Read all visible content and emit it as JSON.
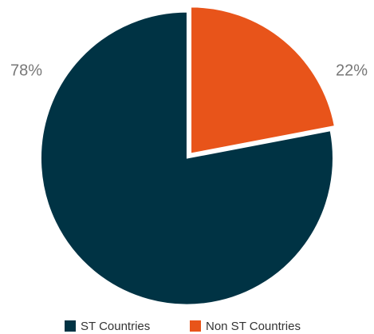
{
  "chart_data": {
    "type": "pie",
    "categories": [
      "ST Countries",
      "Non ST Countries"
    ],
    "values": [
      78,
      22
    ],
    "value_labels": [
      "78%",
      "22%"
    ],
    "colors": [
      "#003344",
      "#e8541a"
    ]
  }
}
